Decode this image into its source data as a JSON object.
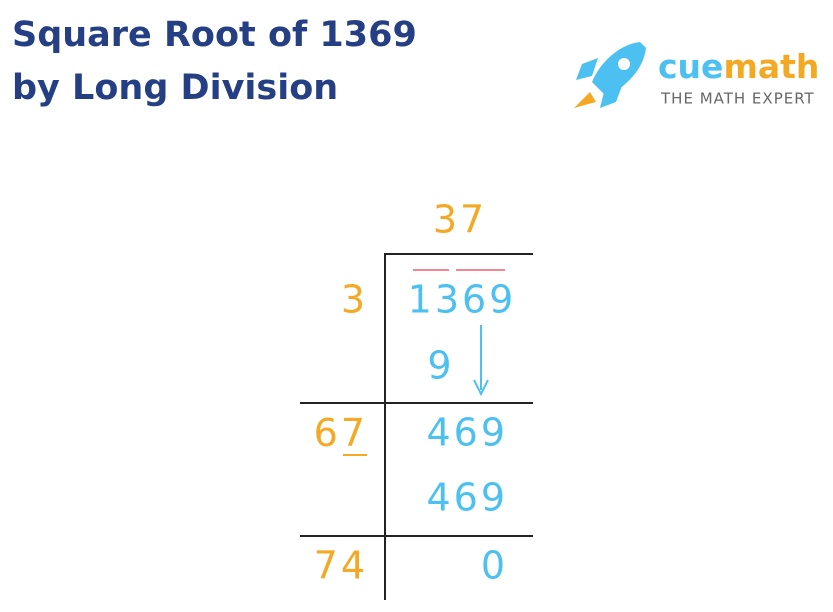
{
  "header": {
    "title_lines": [
      "Square Root of 1369",
      "by Long Division"
    ]
  },
  "logo": {
    "brand_parts": [
      "cue",
      "math"
    ],
    "tagline": "THE MATH EXPERT"
  },
  "division": {
    "quotient": "37",
    "dividend": "1369",
    "divisors": [
      "3",
      [
        "6",
        "7"
      ],
      "74"
    ],
    "steps": [
      "9",
      "469",
      "469",
      "0"
    ]
  }
}
